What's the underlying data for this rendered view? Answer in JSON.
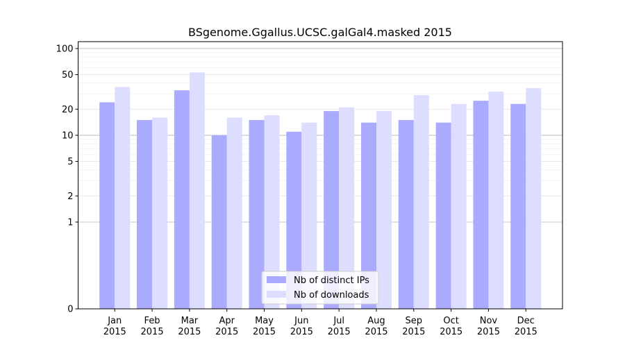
{
  "chart_data": {
    "type": "bar",
    "title": "BSgenome.Ggallus.UCSC.galGal4.masked 2015",
    "xlabel": "",
    "ylabel": "",
    "y_scale": "symlog",
    "ylim": [
      0,
      120
    ],
    "y_ticks": [
      {
        "value": 0,
        "label": "0"
      },
      {
        "value": 1,
        "label": "1"
      },
      {
        "value": 2,
        "label": "2"
      },
      {
        "value": 5,
        "label": "5"
      },
      {
        "value": 10,
        "label": "10"
      },
      {
        "value": 20,
        "label": "20"
      },
      {
        "value": 50,
        "label": "50"
      },
      {
        "value": 100,
        "label": "100"
      }
    ],
    "grid": true,
    "legend_position": "bottom-center",
    "categories": [
      {
        "month": "Jan",
        "year": "2015"
      },
      {
        "month": "Feb",
        "year": "2015"
      },
      {
        "month": "Mar",
        "year": "2015"
      },
      {
        "month": "Apr",
        "year": "2015"
      },
      {
        "month": "May",
        "year": "2015"
      },
      {
        "month": "Jun",
        "year": "2015"
      },
      {
        "month": "Jul",
        "year": "2015"
      },
      {
        "month": "Aug",
        "year": "2015"
      },
      {
        "month": "Sep",
        "year": "2015"
      },
      {
        "month": "Oct",
        "year": "2015"
      },
      {
        "month": "Nov",
        "year": "2015"
      },
      {
        "month": "Dec",
        "year": "2015"
      }
    ],
    "series": [
      {
        "name": "Nb of distinct IPs",
        "color": "#aaaaff",
        "values": [
          24,
          15,
          33,
          10,
          15,
          11,
          19,
          14,
          15,
          14,
          25,
          23
        ]
      },
      {
        "name": "Nb of downloads",
        "color": "#ddddff",
        "values": [
          36,
          16,
          53,
          16,
          17,
          14,
          21,
          19,
          29,
          23,
          32,
          35
        ]
      }
    ]
  }
}
